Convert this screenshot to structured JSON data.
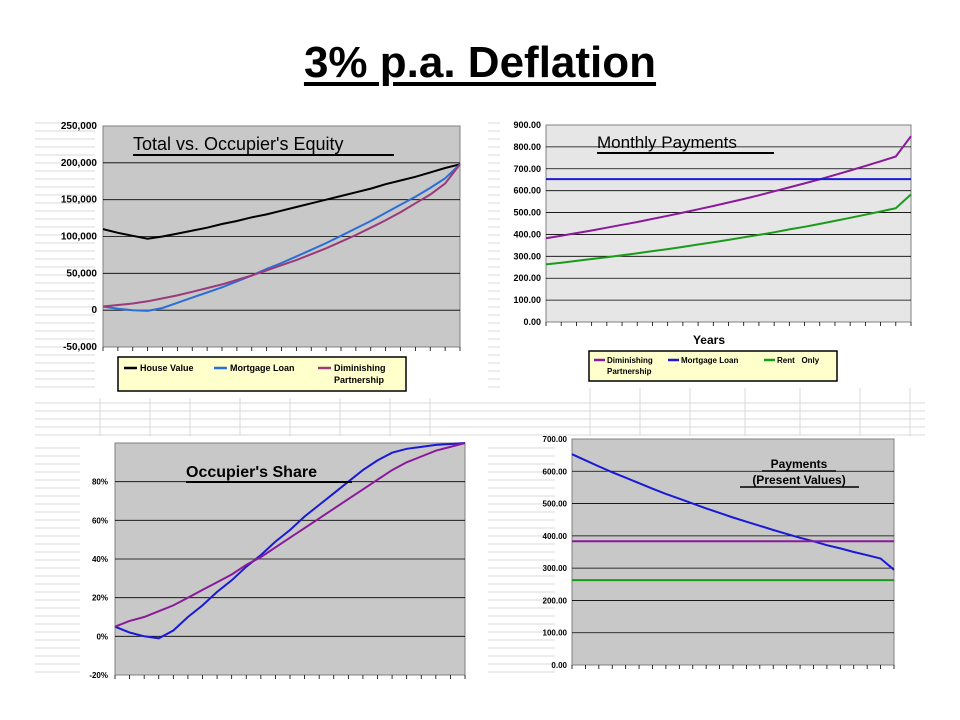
{
  "page": {
    "title": "3% p.a. Deflation"
  },
  "colors": {
    "house_value": "#000000",
    "mortgage_loan": "#2a6fd6",
    "diminishing_partnership": "#9b3a7a",
    "dp_purple": "#8b1a9b",
    "mortgage_blue": "#1a1ad6",
    "rent_green": "#1a9b1a",
    "plot_bg": "#c8c8c8",
    "plot_bg_light": "#e6e6e6",
    "grid": "#000000"
  },
  "chart_data": [
    {
      "id": "equity",
      "type": "line",
      "title": "Total vs. Occupier's Equity",
      "xlabel": "",
      "ylabel": "",
      "ylim": [
        -50000,
        250000
      ],
      "yticks": [
        -50000,
        0,
        50000,
        100000,
        150000,
        200000,
        250000
      ],
      "ytick_labels": [
        "-50,000",
        "0",
        "50,000",
        "100,000",
        "150,000",
        "200,000",
        "250,000"
      ],
      "grid": true,
      "legend_placement": "bottom",
      "x": [
        0,
        1,
        2,
        3,
        4,
        5,
        6,
        7,
        8,
        9,
        10,
        11,
        12,
        13,
        14,
        15,
        16,
        17,
        18,
        19,
        20,
        21,
        22,
        23,
        24
      ],
      "series": [
        {
          "name": "House Value",
          "color_key": "house_value",
          "values": [
            110000,
            105000,
            101000,
            97000,
            100000,
            104000,
            108000,
            112000,
            117000,
            121000,
            126000,
            130000,
            135000,
            140000,
            145000,
            150000,
            155000,
            160000,
            165000,
            171000,
            176000,
            181000,
            187000,
            193000,
            198000
          ]
        },
        {
          "name": "Mortgage Loan",
          "color_key": "mortgage_loan",
          "values": [
            5000,
            2000,
            0,
            -1000,
            3000,
            10000,
            17000,
            24000,
            31000,
            39000,
            47000,
            56000,
            64000,
            73000,
            82000,
            91000,
            101000,
            111000,
            121000,
            132000,
            143000,
            154000,
            166000,
            179000,
            198000
          ]
        },
        {
          "name": "Diminishing Partnership",
          "color_key": "diminishing_partnership",
          "values": [
            5000,
            7000,
            9000,
            12000,
            16000,
            20000,
            25000,
            30000,
            35000,
            41000,
            47000,
            54000,
            61000,
            68000,
            76000,
            84000,
            93000,
            102000,
            112000,
            122000,
            133000,
            145000,
            157000,
            172000,
            198000
          ]
        }
      ]
    },
    {
      "id": "monthly",
      "type": "line",
      "title": "Monthly Payments",
      "xlabel": "Years",
      "ylabel": "",
      "ylim": [
        0,
        900
      ],
      "yticks": [
        0,
        100,
        200,
        300,
        400,
        500,
        600,
        700,
        800,
        900
      ],
      "ytick_labels": [
        "0.00",
        "100.00",
        "200.00",
        "300.00",
        "400.00",
        "500.00",
        "600.00",
        "700.00",
        "800.00",
        "900.00"
      ],
      "grid": true,
      "legend_placement": "bottom",
      "x": [
        0,
        1,
        2,
        3,
        4,
        5,
        6,
        7,
        8,
        9,
        10,
        11,
        12,
        13,
        14,
        15,
        16,
        17,
        18,
        19,
        20,
        21,
        22,
        23,
        24
      ],
      "series": [
        {
          "name": "Diminishing Partnership",
          "color_key": "dp_purple",
          "values": [
            383,
            394,
            406,
            418,
            431,
            444,
            457,
            471,
            485,
            500,
            515,
            530,
            546,
            562,
            579,
            597,
            615,
            633,
            652,
            672,
            692,
            713,
            734,
            756,
            849
          ]
        },
        {
          "name": "Mortgage Loan",
          "color_key": "mortgage_blue",
          "values": [
            653,
            653,
            653,
            653,
            653,
            653,
            653,
            653,
            653,
            653,
            653,
            653,
            653,
            653,
            653,
            653,
            653,
            653,
            653,
            653,
            653,
            653,
            653,
            653,
            653
          ]
        },
        {
          "name": "Rent   Only",
          "color_key": "rent_green",
          "values": [
            263,
            271,
            279,
            288,
            296,
            305,
            314,
            324,
            333,
            343,
            354,
            364,
            375,
            387,
            398,
            410,
            423,
            435,
            448,
            462,
            476,
            490,
            505,
            520,
            583
          ]
        }
      ]
    },
    {
      "id": "share",
      "type": "line",
      "title": "Occupier's Share",
      "xlabel": "",
      "ylabel": "",
      "ylim": [
        -0.2,
        1.0
      ],
      "yticks": [
        -0.2,
        0,
        0.2,
        0.4,
        0.6,
        0.8
      ],
      "ytick_labels": [
        "-20%",
        "0%",
        "20%",
        "40%",
        "60%",
        "80%"
      ],
      "grid": true,
      "legend_placement": "none",
      "x": [
        0,
        1,
        2,
        3,
        4,
        5,
        6,
        7,
        8,
        9,
        10,
        11,
        12,
        13,
        14,
        15,
        16,
        17,
        18,
        19,
        20,
        21,
        22,
        23,
        24
      ],
      "series": [
        {
          "color_key": "mortgage_blue",
          "values": [
            0.05,
            0.02,
            0.0,
            -0.01,
            0.03,
            0.1,
            0.16,
            0.23,
            0.29,
            0.36,
            0.42,
            0.49,
            0.55,
            0.62,
            0.68,
            0.74,
            0.8,
            0.86,
            0.91,
            0.95,
            0.97,
            0.98,
            0.99,
            0.995,
            1.0
          ]
        },
        {
          "color_key": "dp_purple",
          "values": [
            0.05,
            0.08,
            0.1,
            0.13,
            0.16,
            0.2,
            0.24,
            0.28,
            0.32,
            0.37,
            0.41,
            0.46,
            0.51,
            0.56,
            0.61,
            0.66,
            0.71,
            0.76,
            0.81,
            0.86,
            0.9,
            0.93,
            0.96,
            0.98,
            1.0
          ]
        }
      ]
    },
    {
      "id": "pv",
      "type": "line",
      "title": "Payments",
      "subtitle": "(Present Values)",
      "xlabel": "",
      "ylabel": "",
      "ylim": [
        0,
        700
      ],
      "yticks": [
        0,
        100,
        200,
        300,
        400,
        500,
        600,
        700
      ],
      "ytick_labels": [
        "0.00",
        "100.00",
        "200.00",
        "300.00",
        "400.00",
        "500.00",
        "600.00",
        "700.00"
      ],
      "grid": true,
      "legend_placement": "none",
      "x": [
        0,
        1,
        2,
        3,
        4,
        5,
        6,
        7,
        8,
        9,
        10,
        11,
        12,
        13,
        14,
        15,
        16,
        17,
        18,
        19,
        20,
        21,
        22,
        23,
        24
      ],
      "series": [
        {
          "color_key": "mortgage_blue",
          "values": [
            653,
            634,
            615,
            597,
            580,
            563,
            546,
            530,
            515,
            500,
            485,
            471,
            457,
            444,
            431,
            418,
            406,
            394,
            383,
            371,
            361,
            350,
            340,
            330,
            295
          ]
        },
        {
          "color_key": "dp_purple",
          "values": [
            383,
            383,
            383,
            383,
            383,
            383,
            383,
            383,
            383,
            383,
            383,
            383,
            383,
            383,
            383,
            383,
            383,
            383,
            383,
            383,
            383,
            383,
            383,
            383,
            383
          ]
        },
        {
          "color_key": "rent_green",
          "values": [
            263,
            263,
            263,
            263,
            263,
            263,
            263,
            263,
            263,
            263,
            263,
            263,
            263,
            263,
            263,
            263,
            263,
            263,
            263,
            263,
            263,
            263,
            263,
            263,
            263
          ]
        }
      ]
    }
  ],
  "legends": {
    "equity": [
      "House Value",
      "Mortgage Loan",
      "Diminishing",
      "Partnership"
    ],
    "monthly": [
      "Diminishing",
      "Partnership",
      "Mortgage Loan",
      "Rent   Only"
    ]
  }
}
